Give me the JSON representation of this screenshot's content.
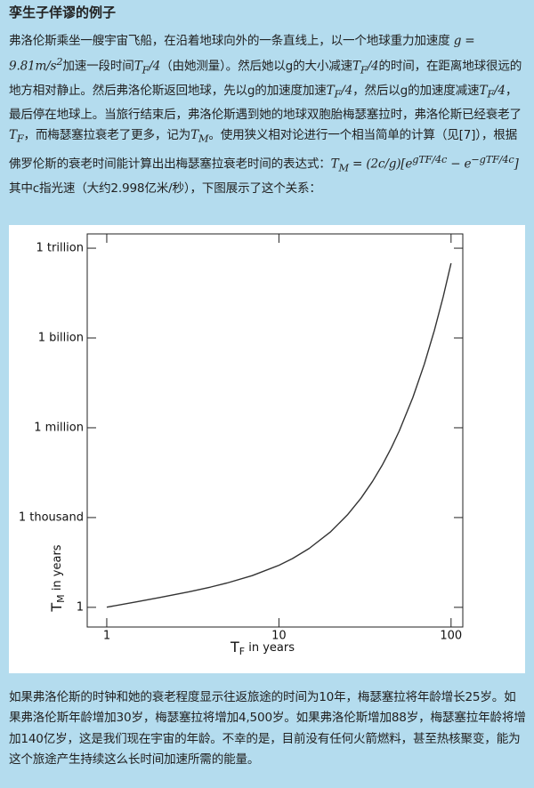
{
  "header": {
    "title": "孪生子佯谬的例子"
  },
  "paragraphs": [
    [
      {
        "t": "弗洛伦斯乘坐一艘宇宙飞船，在沿着地球向外的一条直线上，以一个地球重力加速度 "
      },
      {
        "m": "g = 9.81m/s"
      },
      {
        "sup": "2"
      },
      {
        "t": "加速一段时间"
      },
      {
        "m": "T"
      },
      {
        "sub": "F"
      },
      {
        "m": "/4"
      },
      {
        "t": "（由她测量）。然后她以g的大小减速"
      },
      {
        "m": "T"
      },
      {
        "sub": "F"
      },
      {
        "m": "/4"
      },
      {
        "t": "的时间，在距离地球很远的地方相对静止。然后弗洛伦斯返回地球，先以g的加速度加速"
      },
      {
        "m": "T"
      },
      {
        "sub": "F"
      },
      {
        "m": "/4"
      },
      {
        "t": "，然后以g的加速度减速"
      },
      {
        "m": "T"
      },
      {
        "sub": "F"
      },
      {
        "m": "/4"
      },
      {
        "t": "，最后停在地球上。当旅行结束后，弗洛伦斯遇到她的地球双胞胎梅瑟塞拉时，弗洛伦斯已经衰老了"
      },
      {
        "m": "T"
      },
      {
        "sub": "F"
      },
      {
        "t": "，而梅瑟塞拉衰老了更多，记为"
      },
      {
        "m": "T"
      },
      {
        "sub": "M"
      },
      {
        "t": "。使用狭义相对论进行一个相当简单的计算（见[7]），根据佛罗伦斯的衰老时间能计算出出梅瑟塞拉衰老时间的表达式："
      },
      {
        "m": "T"
      },
      {
        "sub": "M"
      },
      {
        "m": " = (2c/g)[e"
      },
      {
        "sup": "gTF/4c"
      },
      {
        "m": " − e"
      },
      {
        "sup": "−gTF/4c"
      },
      {
        "m": "]"
      },
      {
        "t": "其中c指光速（大约2.998亿米/秒），下图展示了这个关系："
      }
    ],
    [
      {
        "t": "如果弗洛伦斯的时钟和她的衰老程度显示往返旅途的时间为10年，梅瑟塞拉将年龄增长25岁。如果弗洛伦斯年龄增加30岁，梅瑟塞拉将增加4,500岁。如果弗洛伦斯增加88岁，梅瑟塞拉年龄将增加140亿岁，这是我们现在宇宙的年龄。不幸的是，目前没有任何火箭燃料，甚至热核聚变，能为这个旅途产生持续这么长时间加速所需的能量。"
      }
    ]
  ],
  "chart_data": {
    "type": "line",
    "log_x": true,
    "log_y": true,
    "color": "#333333",
    "xlabel": {
      "main": "T",
      "sub": "F",
      "rest": "  in years"
    },
    "ylabel": {
      "main": "T",
      "sub": "M",
      "rest": " in years"
    },
    "x": [
      1,
      1.5,
      2,
      3,
      4,
      5,
      7,
      10,
      12,
      15,
      20,
      25,
      30,
      35,
      40,
      45,
      50,
      60,
      70,
      80,
      90,
      100
    ],
    "values": [
      1.01,
      1.54,
      2.09,
      3.31,
      4.74,
      6.51,
      11.5,
      25.4,
      42.8,
      93,
      338,
      1229,
      4463,
      16245,
      58960,
      214400,
      779000,
      10300000,
      136000000,
      1800000000,
      23700000000,
      314000000000
    ],
    "xlim": [
      0.77,
      117
    ],
    "ylim": [
      0.22,
      3000000000000
    ],
    "xticks": [
      1,
      10,
      100
    ],
    "yticks": [
      1,
      {
        "value": 1000,
        "label": "1 thousand"
      },
      {
        "value": 1000000,
        "label": "1 million"
      },
      {
        "value": 1000000000,
        "label": "1 billion"
      },
      {
        "value": 1000000000000,
        "label": "1 trillion"
      }
    ]
  }
}
